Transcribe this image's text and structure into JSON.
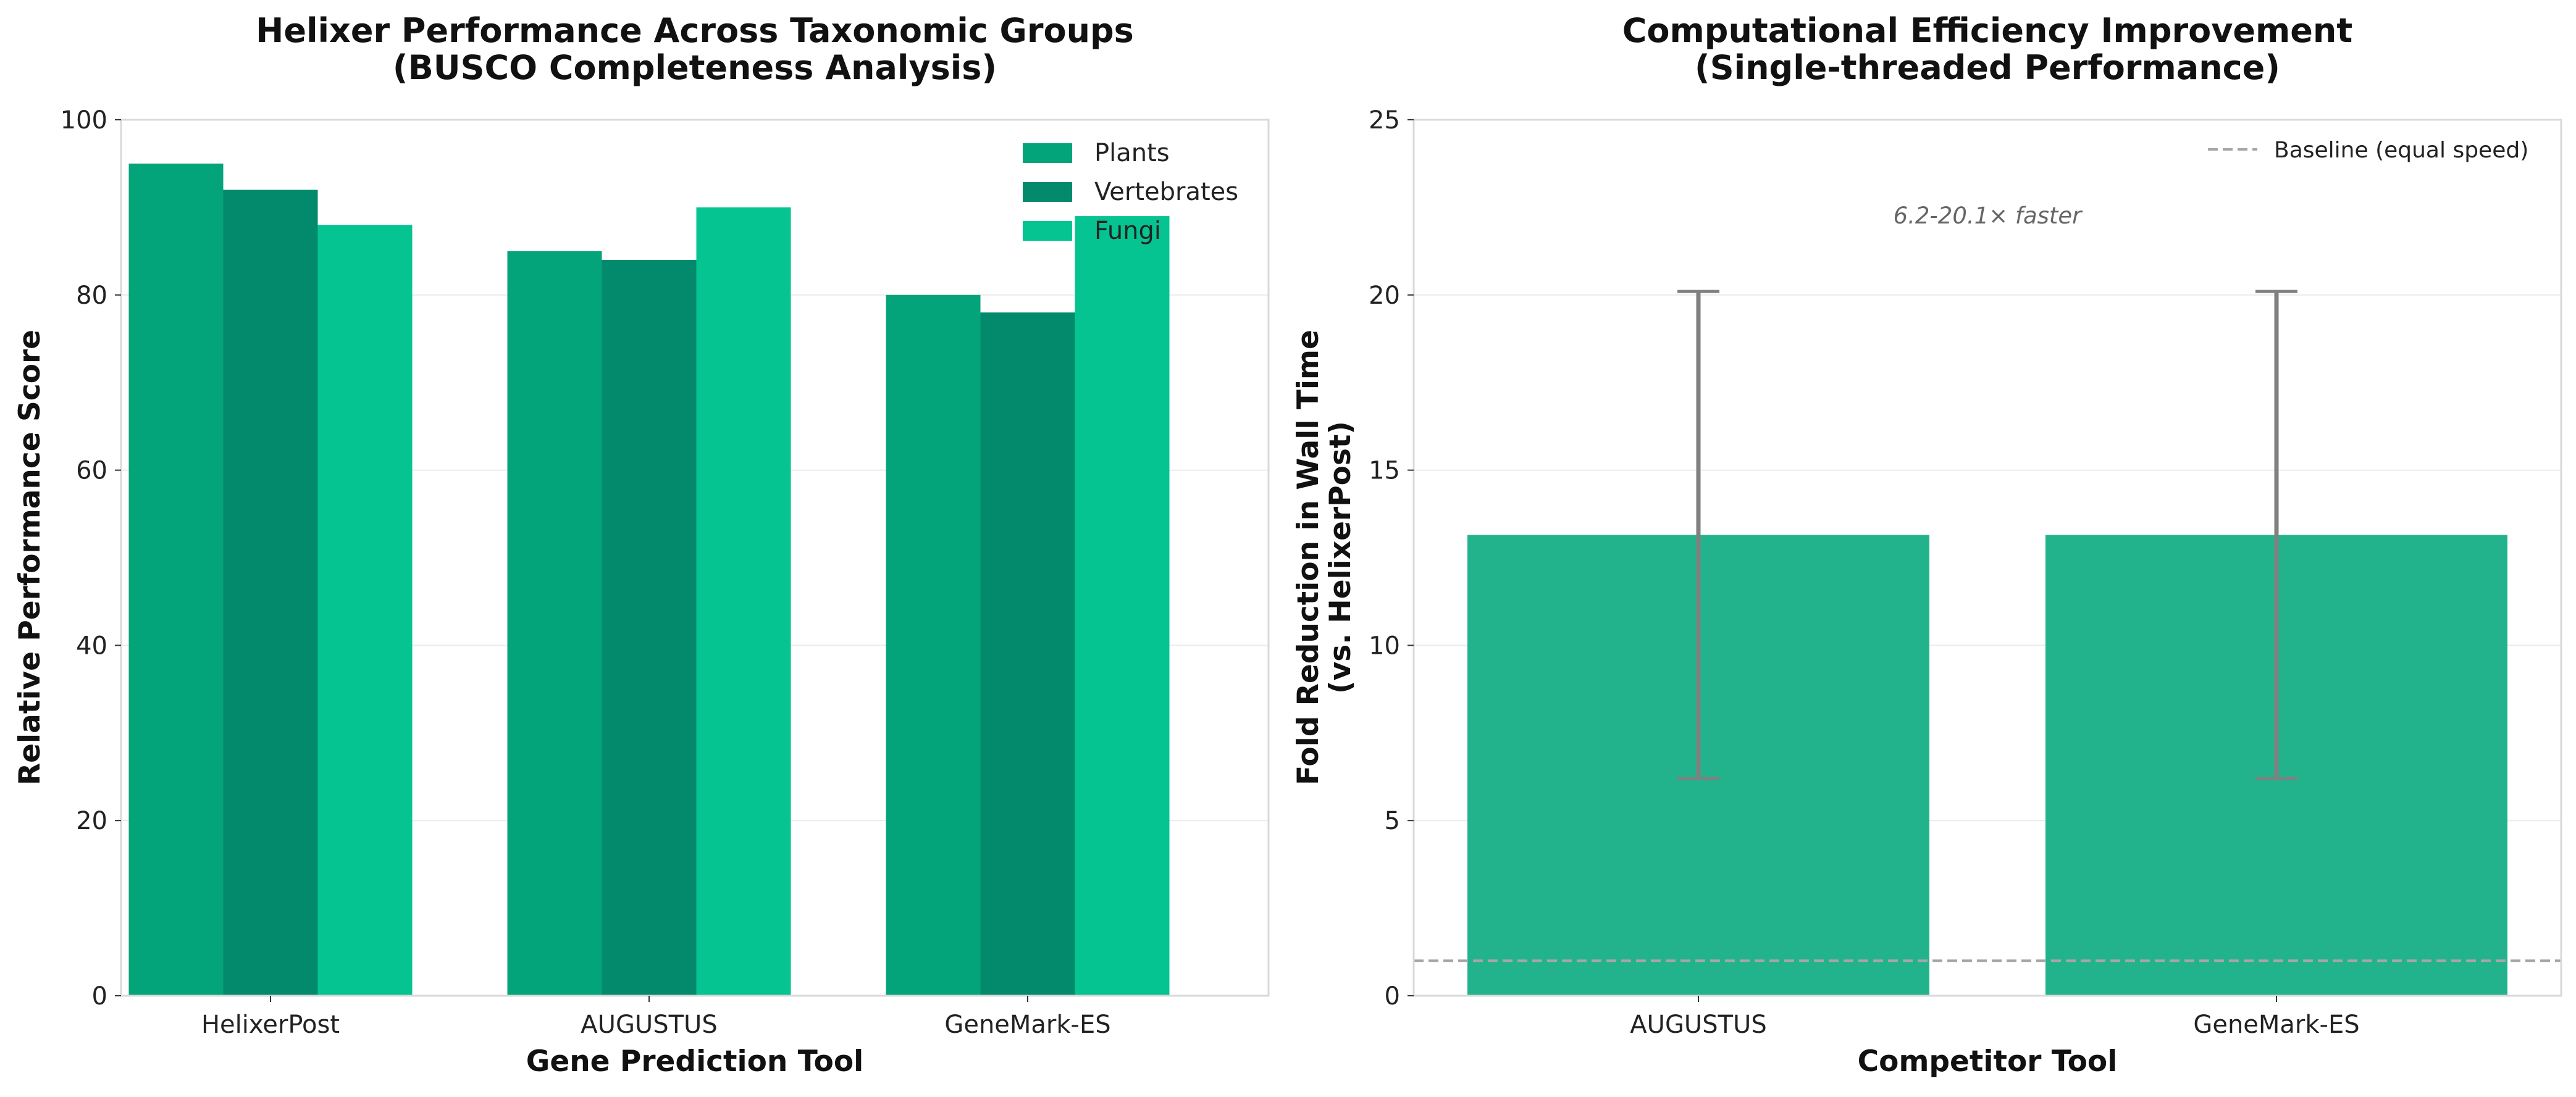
{
  "chart_data": [
    {
      "type": "bar",
      "title": "Helixer Performance Across Taxonomic Groups",
      "subtitle": "(BUSCO Completeness Analysis)",
      "xlabel": "Gene Prediction Tool",
      "ylabel": "Relative Performance Score",
      "categories": [
        "HelixerPost",
        "AUGUSTUS",
        "GeneMark-ES"
      ],
      "series": [
        {
          "name": "Plants",
          "values": [
            95,
            85,
            80
          ],
          "color": "#04a47a"
        },
        {
          "name": "Vertebrates",
          "values": [
            92,
            84,
            78
          ],
          "color": "#038a6d"
        },
        {
          "name": "Fungi",
          "values": [
            88,
            90,
            89
          ],
          "color": "#06c491"
        }
      ],
      "ylim": [
        0,
        100
      ],
      "yticks": [
        "0",
        "20",
        "40",
        "60",
        "80",
        "100"
      ],
      "ytick_values": [
        0,
        20,
        40,
        60,
        80,
        100
      ],
      "grid": true,
      "legend_position": "top-right"
    },
    {
      "type": "bar",
      "title": "Computational Efficiency Improvement",
      "subtitle": "(Single-threaded Performance)",
      "xlabel": "Competitor Tool",
      "ylabel": "Fold Reduction in Wall Time",
      "ylabel2": "(vs. HelixerPost)",
      "categories": [
        "AUGUSTUS",
        "GeneMark-ES"
      ],
      "values": [
        13.15,
        13.15
      ],
      "error_low": [
        6.2,
        6.2
      ],
      "error_high": [
        20.1,
        20.1
      ],
      "bar_color": "#22b38c",
      "error_color": "#808080",
      "baseline": {
        "value": 1,
        "label": "Baseline (equal speed)",
        "color": "#a6a6a6"
      },
      "annotation": "6.2-20.1× faster",
      "ylim": [
        0,
        25
      ],
      "yticks": [
        "0",
        "5",
        "10",
        "15",
        "20",
        "25"
      ],
      "ytick_values": [
        0,
        5,
        10,
        15,
        20,
        25
      ],
      "grid": true,
      "legend_position": "top-right"
    }
  ]
}
